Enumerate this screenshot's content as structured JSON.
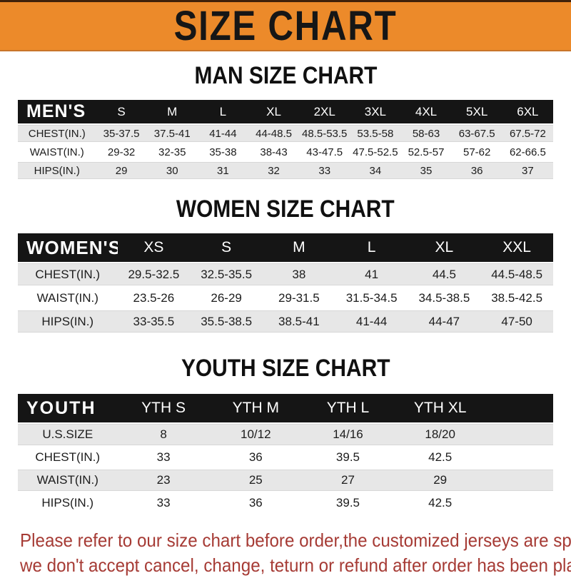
{
  "banner": {
    "title": "SIZE CHART",
    "bg_color": "#EC8A2A",
    "text_color": "#161616"
  },
  "colors": {
    "table_header_bg": "#151515",
    "table_header_text": "#ffffff",
    "row_alt_bg": "#e7e7e7",
    "footer_text": "#A63B35"
  },
  "sections": [
    {
      "heading": "MAN SIZE CHART",
      "table": {
        "corner_label": "MEN'S",
        "columns": [
          "S",
          "M",
          "L",
          "XL",
          "2XL",
          "3XL",
          "4XL",
          "5XL",
          "6XL"
        ],
        "trailing_filler": false,
        "rows": [
          {
            "label": "CHEST(IN.)",
            "values": [
              "35-37.5",
              "37.5-41",
              "41-44",
              "44-48.5",
              "48.5-53.5",
              "53.5-58",
              "58-63",
              "63-67.5",
              "67.5-72"
            ]
          },
          {
            "label": "WAIST(IN.)",
            "values": [
              "29-32",
              "32-35",
              "35-38",
              "38-43",
              "43-47.5",
              "47.5-52.5",
              "52.5-57",
              "57-62",
              "62-66.5"
            ]
          },
          {
            "label": "HIPS(IN.)",
            "values": [
              "29",
              "30",
              "31",
              "32",
              "33",
              "34",
              "35",
              "36",
              "37"
            ]
          }
        ]
      }
    },
    {
      "heading": "WOMEN SIZE CHART",
      "table": {
        "corner_label": "WOMEN'S",
        "columns": [
          "XS",
          "S",
          "M",
          "L",
          "XL",
          "XXL"
        ],
        "trailing_filler": false,
        "rows": [
          {
            "label": "CHEST(IN.)",
            "values": [
              "29.5-32.5",
              "32.5-35.5",
              "38",
              "41",
              "44.5",
              "44.5-48.5"
            ]
          },
          {
            "label": "WAIST(IN.)",
            "values": [
              "23.5-26",
              "26-29",
              "29-31.5",
              "31.5-34.5",
              "34.5-38.5",
              "38.5-42.5"
            ]
          },
          {
            "label": "HIPS(IN.)",
            "values": [
              "33-35.5",
              "35.5-38.5",
              "38.5-41",
              "41-44",
              "44-47",
              "47-50"
            ]
          }
        ]
      }
    },
    {
      "heading": "YOUTH SIZE CHART",
      "table": {
        "corner_label": "YOUTH",
        "columns": [
          "YTH S",
          "YTH M",
          "YTH L",
          "YTH XL"
        ],
        "trailing_filler": true,
        "rows": [
          {
            "label": "U.S.SIZE",
            "values": [
              "8",
              "10/12",
              "14/16",
              "18/20"
            ]
          },
          {
            "label": "CHEST(IN.)",
            "values": [
              "33",
              "36",
              "39.5",
              "42.5"
            ]
          },
          {
            "label": "WAIST(IN.)",
            "values": [
              "23",
              "25",
              "27",
              "29"
            ]
          },
          {
            "label": "HIPS(IN.)",
            "values": [
              "33",
              "36",
              "39.5",
              "42.5"
            ]
          }
        ]
      }
    }
  ],
  "footer": {
    "line1": "Please refer to our size chart before order,the customized jerseys are special products,",
    "line2": "we don't accept cancel, change, teturn or refund after order has been placed!"
  }
}
